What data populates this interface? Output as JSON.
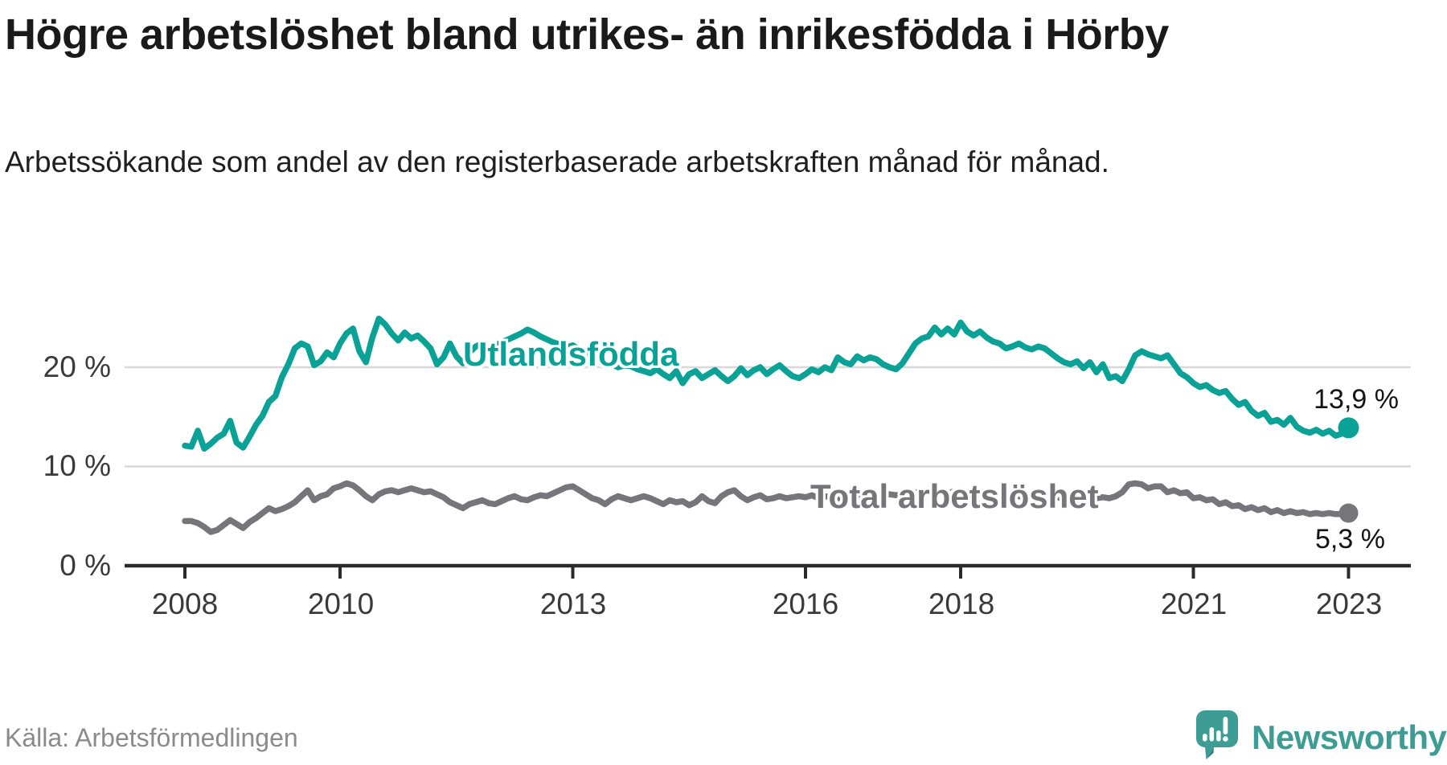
{
  "header": {
    "title": "Högre arbetslöshet bland utrikes- än inrikesfödda i Hörby",
    "subtitle": "Arbetssökande som andel av den registerbaserade arbetskraften månad för månad."
  },
  "footer": {
    "source": "Källa: Arbetsförmedlingen",
    "brand": "Newsworthy"
  },
  "colors": {
    "series_foreign_born": "#0aa296",
    "series_total": "#76767a",
    "gridline": "#d8d8d8",
    "axis": "#2b2b2b",
    "brand_teal": "#3d9c93",
    "value_label": "#141414"
  },
  "chart_data": {
    "type": "line",
    "interval": "monthly",
    "start": "2008-01",
    "end": "2023-01",
    "grid": "horizontal-only",
    "legend_position": "inline-labels-on-lines",
    "ylim": [
      0,
      27
    ],
    "xlim_years": [
      2007.2,
      2023.8
    ],
    "y_ticks": [
      {
        "label": "0 %",
        "value": 0
      },
      {
        "label": "10 %",
        "value": 10
      },
      {
        "label": "20 %",
        "value": 20
      }
    ],
    "x_ticks": [
      {
        "label": "2008",
        "year": 2008
      },
      {
        "label": "2010",
        "year": 2010
      },
      {
        "label": "2013",
        "year": 2013
      },
      {
        "label": "2016",
        "year": 2016
      },
      {
        "label": "2018",
        "year": 2018
      },
      {
        "label": "2021",
        "year": 2021
      },
      {
        "label": "2023",
        "year": 2023
      }
    ],
    "series": [
      {
        "name": "Utlandsfödda",
        "color": "#0aa296",
        "end_value_label": "13,9 %",
        "end_value": 13.9,
        "values": [
          12.1,
          12.0,
          13.6,
          11.8,
          12.3,
          12.9,
          13.3,
          14.6,
          12.4,
          11.9,
          13.0,
          14.2,
          15.1,
          16.5,
          17.1,
          19.0,
          20.3,
          21.9,
          22.4,
          22.1,
          20.2,
          20.6,
          21.5,
          21.0,
          22.4,
          23.4,
          23.9,
          21.6,
          20.5,
          23.0,
          24.9,
          24.3,
          23.4,
          22.7,
          23.5,
          22.9,
          23.2,
          22.6,
          21.9,
          20.3,
          21.0,
          22.4,
          21.1,
          20.4,
          21.5,
          22.1,
          22.4,
          21.8,
          22.2,
          22.5,
          22.8,
          23.1,
          23.4,
          23.8,
          23.5,
          23.1,
          22.8,
          22.5,
          22.3,
          22.0,
          22.2,
          21.8,
          21.4,
          21.1,
          20.8,
          20.5,
          20.3,
          20.0,
          20.2,
          20.1,
          19.8,
          19.6,
          19.4,
          19.8,
          19.3,
          18.9,
          19.6,
          18.4,
          19.3,
          19.6,
          18.9,
          19.3,
          19.7,
          19.1,
          18.6,
          19.1,
          19.9,
          19.2,
          19.7,
          20.0,
          19.3,
          19.8,
          20.2,
          19.6,
          19.1,
          18.9,
          19.3,
          19.8,
          19.5,
          20.0,
          19.7,
          21.0,
          20.5,
          20.3,
          21.1,
          20.7,
          21.0,
          20.8,
          20.3,
          20.0,
          19.8,
          20.4,
          21.4,
          22.4,
          22.9,
          23.1,
          24.0,
          23.3,
          23.9,
          23.3,
          24.5,
          23.6,
          23.2,
          23.6,
          23.0,
          22.6,
          22.4,
          21.9,
          22.1,
          22.4,
          22.0,
          21.8,
          22.1,
          21.9,
          21.4,
          20.9,
          20.5,
          20.3,
          20.6,
          19.9,
          20.5,
          19.5,
          20.3,
          18.9,
          19.1,
          18.6,
          19.8,
          21.2,
          21.6,
          21.3,
          21.1,
          20.9,
          21.2,
          20.3,
          19.4,
          19.0,
          18.4,
          18.0,
          18.2,
          17.7,
          17.4,
          17.6,
          16.8,
          16.2,
          16.5,
          15.6,
          15.1,
          15.4,
          14.5,
          14.7,
          14.2,
          14.9,
          14.0,
          13.6,
          13.4,
          13.7,
          13.3,
          13.6,
          13.1,
          13.3,
          13.9
        ]
      },
      {
        "name": "Total arbetslöshet",
        "color": "#76767a",
        "end_value_label": "5,3 %",
        "end_value": 5.3,
        "values": [
          4.5,
          4.5,
          4.3,
          3.9,
          3.4,
          3.6,
          4.1,
          4.6,
          4.2,
          3.8,
          4.4,
          4.8,
          5.3,
          5.8,
          5.5,
          5.7,
          6.0,
          6.4,
          7.0,
          7.6,
          6.6,
          7.0,
          7.2,
          7.8,
          8.0,
          8.3,
          8.1,
          7.6,
          7.0,
          6.6,
          7.2,
          7.5,
          7.6,
          7.4,
          7.6,
          7.8,
          7.6,
          7.4,
          7.5,
          7.2,
          6.9,
          6.4,
          6.1,
          5.8,
          6.2,
          6.4,
          6.6,
          6.3,
          6.2,
          6.5,
          6.8,
          7.0,
          6.7,
          6.6,
          6.9,
          7.1,
          7.0,
          7.3,
          7.6,
          7.9,
          8.0,
          7.6,
          7.2,
          6.8,
          6.6,
          6.2,
          6.7,
          7.0,
          6.8,
          6.6,
          6.8,
          7.0,
          6.8,
          6.5,
          6.2,
          6.6,
          6.4,
          6.5,
          6.1,
          6.4,
          7.0,
          6.5,
          6.3,
          7.0,
          7.4,
          7.6,
          7.0,
          6.6,
          6.9,
          7.1,
          6.7,
          6.8,
          7.0,
          6.8,
          6.9,
          7.0,
          6.9,
          7.1,
          6.8,
          7.0,
          6.9,
          6.8,
          6.7,
          6.9,
          7.0,
          6.8,
          6.9,
          7.1,
          7.0,
          7.2,
          7.1,
          7.3,
          7.2,
          7.4,
          7.2,
          7.3,
          7.5,
          7.4,
          7.3,
          7.5,
          7.6,
          7.4,
          7.3,
          7.4,
          7.2,
          7.1,
          7.0,
          7.1,
          7.2,
          7.0,
          6.9,
          7.1,
          7.0,
          6.9,
          6.8,
          6.9,
          6.7,
          6.8,
          6.9,
          7.0,
          6.9,
          6.8,
          6.9,
          6.8,
          7.0,
          7.4,
          8.2,
          8.3,
          8.2,
          7.8,
          8.0,
          8.0,
          7.4,
          7.6,
          7.3,
          7.4,
          6.8,
          6.9,
          6.6,
          6.7,
          6.2,
          6.4,
          6.0,
          6.1,
          5.7,
          5.9,
          5.6,
          5.8,
          5.4,
          5.6,
          5.3,
          5.5,
          5.3,
          5.4,
          5.2,
          5.3,
          5.2,
          5.3,
          5.2,
          5.2,
          5.3
        ]
      }
    ]
  }
}
